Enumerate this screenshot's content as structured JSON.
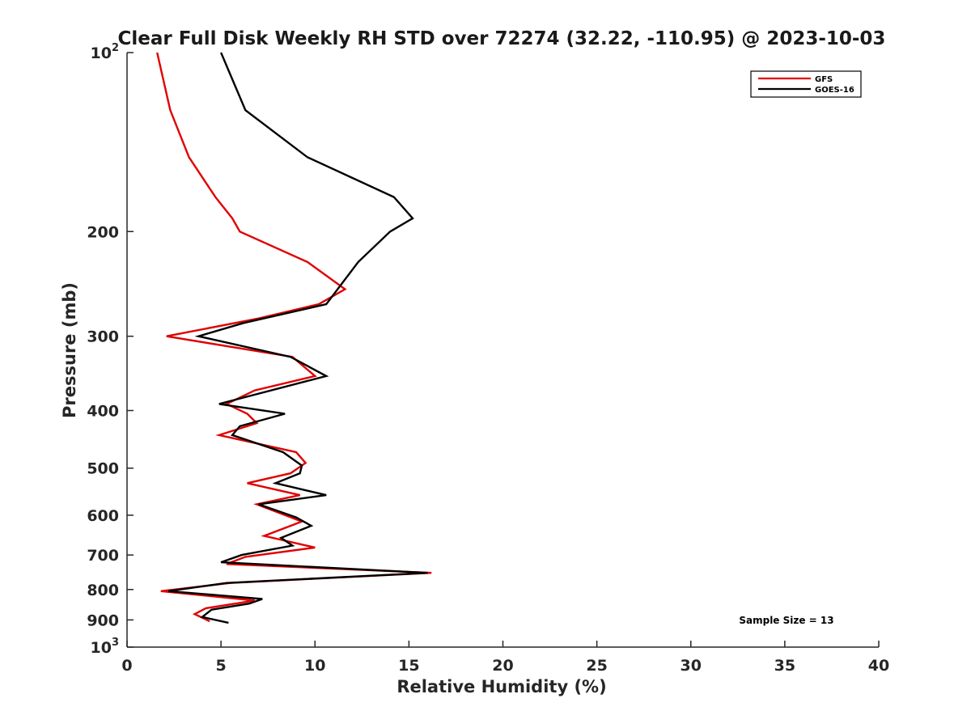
{
  "chart_data": {
    "type": "line",
    "title": "Clear Full Disk Weekly RH STD over 72274 (32.22, -110.95) @ 2023-10-03",
    "xlabel": "Relative Humidity (%)",
    "ylabel": "Pressure (mb)",
    "xlim": [
      0,
      40
    ],
    "ylim": [
      100,
      1000
    ],
    "yscale": "log",
    "y_reversed": true,
    "grid": false,
    "legend_position": "top-right",
    "x_ticks": [
      0,
      5,
      10,
      15,
      20,
      25,
      30,
      35,
      40
    ],
    "y_ticks": [
      {
        "value": 100,
        "base": "10",
        "exp": "2"
      },
      {
        "value": 200,
        "label": "200"
      },
      {
        "value": 300,
        "label": "300"
      },
      {
        "value": 400,
        "label": "400"
      },
      {
        "value": 500,
        "label": "500"
      },
      {
        "value": 600,
        "label": "600"
      },
      {
        "value": 700,
        "label": "700"
      },
      {
        "value": 800,
        "label": "800"
      },
      {
        "value": 900,
        "label": "900"
      },
      {
        "value": 1000,
        "base": "10",
        "exp": "3"
      }
    ],
    "annotation": "Sample Size = 13",
    "series": [
      {
        "name": "GFS",
        "color": "#e00000",
        "points": [
          [
            1.6,
            100
          ],
          [
            2.3,
            125
          ],
          [
            3.3,
            150
          ],
          [
            4.7,
            175
          ],
          [
            5.6,
            190
          ],
          [
            6.0,
            200
          ],
          [
            9.6,
            225
          ],
          [
            11.6,
            250
          ],
          [
            10.2,
            265
          ],
          [
            7.0,
            280
          ],
          [
            2.1,
            300
          ],
          [
            8.8,
            325
          ],
          [
            10.0,
            350
          ],
          [
            6.8,
            370
          ],
          [
            5.3,
            390
          ],
          [
            6.4,
            405
          ],
          [
            6.9,
            420
          ],
          [
            4.9,
            440
          ],
          [
            9.0,
            470
          ],
          [
            9.5,
            490
          ],
          [
            8.7,
            510
          ],
          [
            6.4,
            530
          ],
          [
            9.2,
            555
          ],
          [
            6.9,
            575
          ],
          [
            9.3,
            615
          ],
          [
            7.3,
            650
          ],
          [
            10.0,
            680
          ],
          [
            6.3,
            705
          ],
          [
            5.3,
            725
          ],
          [
            16.2,
            750
          ],
          [
            5.5,
            780
          ],
          [
            1.8,
            805
          ],
          [
            6.8,
            835
          ],
          [
            4.2,
            860
          ],
          [
            3.6,
            880
          ],
          [
            4.4,
            905
          ]
        ]
      },
      {
        "name": "GOES-16",
        "color": "#000000",
        "points": [
          [
            5.0,
            100
          ],
          [
            6.3,
            125
          ],
          [
            9.6,
            150
          ],
          [
            14.2,
            175
          ],
          [
            15.2,
            190
          ],
          [
            14.0,
            200
          ],
          [
            12.3,
            225
          ],
          [
            10.6,
            265
          ],
          [
            6.2,
            285
          ],
          [
            3.8,
            300
          ],
          [
            8.7,
            325
          ],
          [
            10.6,
            350
          ],
          [
            4.9,
            390
          ],
          [
            8.4,
            405
          ],
          [
            6.0,
            425
          ],
          [
            5.6,
            440
          ],
          [
            8.3,
            470
          ],
          [
            9.3,
            495
          ],
          [
            9.2,
            510
          ],
          [
            7.9,
            530
          ],
          [
            10.6,
            555
          ],
          [
            7.0,
            575
          ],
          [
            9.0,
            605
          ],
          [
            9.8,
            625
          ],
          [
            8.2,
            655
          ],
          [
            8.8,
            675
          ],
          [
            6.1,
            700
          ],
          [
            5.0,
            720
          ],
          [
            16.0,
            750
          ],
          [
            5.3,
            780
          ],
          [
            2.2,
            805
          ],
          [
            7.2,
            830
          ],
          [
            6.5,
            845
          ],
          [
            4.5,
            865
          ],
          [
            4.0,
            890
          ],
          [
            5.4,
            910
          ]
        ]
      }
    ]
  }
}
